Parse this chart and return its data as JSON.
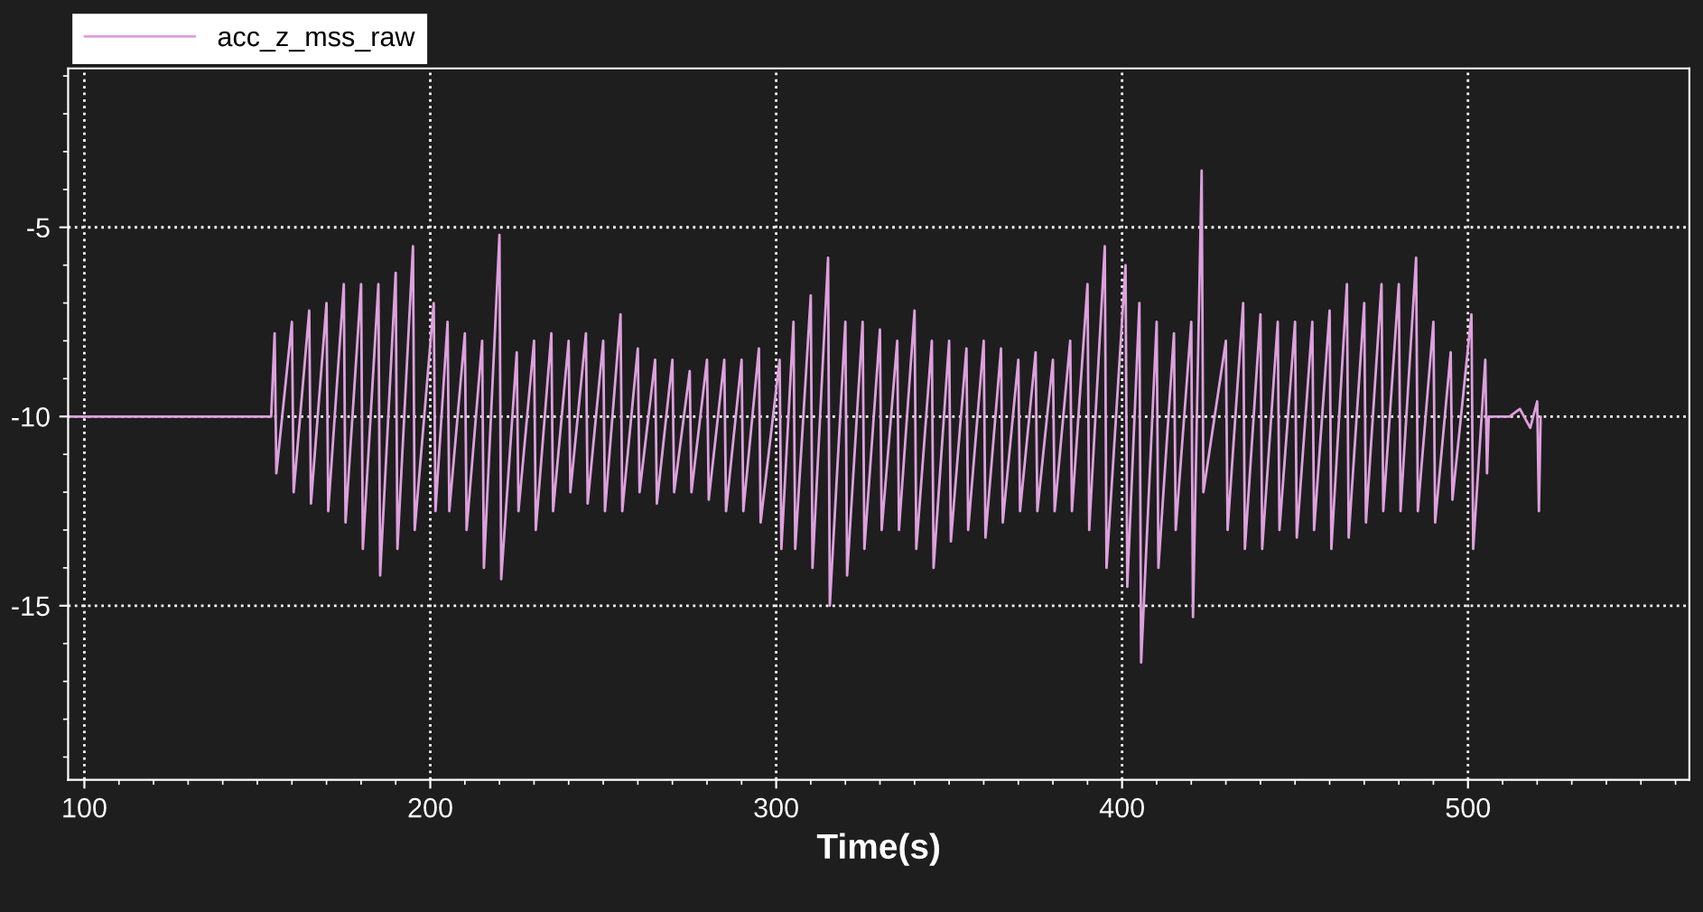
{
  "chart_data": {
    "type": "line",
    "xlabel": "Time(s)",
    "legend": "top left",
    "grid": true,
    "line_style": "solid",
    "marker": "none",
    "xlim": [
      95.3,
      564
    ],
    "xticks": [
      100,
      200,
      300,
      400,
      500
    ],
    "ylim": [
      -19.6,
      -0.8
    ],
    "yticks": [
      -5,
      -10,
      -15
    ],
    "series": [
      {
        "name": "acc_z_mss_raw",
        "color": "#dda0dd",
        "x": [
          96,
          120,
          140,
          154,
          155,
          155.5,
          160,
          160.5,
          165,
          165.5,
          170,
          170.5,
          175,
          175.5,
          180,
          180.5,
          185,
          185.5,
          190,
          190.5,
          195,
          195.5,
          201,
          201.5,
          205,
          205.5,
          210,
          210.5,
          215,
          215.5,
          220,
          220.5,
          225,
          225.5,
          230,
          230.5,
          235,
          235.5,
          240,
          240.5,
          245,
          245.5,
          250,
          250.5,
          255,
          255.5,
          260,
          260.5,
          265,
          265.5,
          270,
          270.5,
          275,
          275.5,
          280,
          280.5,
          285,
          285.5,
          290,
          290.5,
          295,
          295.5,
          301,
          301.5,
          305,
          305.5,
          310,
          310.5,
          315,
          315.5,
          320,
          320.5,
          325,
          325.5,
          330,
          330.5,
          335,
          335.5,
          340,
          340.5,
          345,
          345.5,
          350,
          350.5,
          355,
          355.5,
          360,
          360.5,
          365,
          365.5,
          370,
          370.5,
          375,
          375.5,
          380,
          380.5,
          385,
          385.5,
          390,
          390.5,
          395,
          395.5,
          401,
          401.5,
          405,
          405.5,
          410,
          410.5,
          415,
          415.5,
          420,
          420.5,
          423,
          423.5,
          430,
          430.5,
          435,
          435.5,
          440,
          440.5,
          445,
          445.5,
          450,
          450.5,
          455,
          455.5,
          460,
          460.5,
          465,
          465.5,
          470,
          470.5,
          475,
          475.5,
          480,
          480.5,
          485,
          485.5,
          490,
          490.5,
          495,
          495.5,
          501,
          501.5,
          505,
          505.5,
          506,
          512,
          515,
          518,
          520,
          520.5,
          521
        ],
        "values": [
          -10,
          -10,
          -10,
          -10,
          -7.8,
          -11.5,
          -7.5,
          -12,
          -7.2,
          -12.3,
          -7,
          -12.5,
          -6.5,
          -12.8,
          -6.5,
          -13.5,
          -6.5,
          -14.2,
          -6.2,
          -13.5,
          -5.5,
          -13,
          -7,
          -12.5,
          -7.5,
          -12.5,
          -7.8,
          -13,
          -8,
          -14,
          -5.2,
          -14.3,
          -8.3,
          -12.5,
          -8,
          -13,
          -7.8,
          -12.5,
          -8,
          -12,
          -7.8,
          -12.3,
          -8,
          -12.5,
          -7.3,
          -12.5,
          -8.2,
          -12,
          -8.5,
          -12.3,
          -8.5,
          -12,
          -8.8,
          -12,
          -8.5,
          -12.2,
          -8.5,
          -12.5,
          -8.5,
          -12.5,
          -8.2,
          -12.8,
          -8.5,
          -13.5,
          -7.5,
          -13.5,
          -6.8,
          -14,
          -5.8,
          -15,
          -7.5,
          -14.2,
          -7.5,
          -13.5,
          -7.7,
          -13,
          -8,
          -13,
          -7.2,
          -13.5,
          -8,
          -14,
          -8,
          -13.3,
          -8.2,
          -13,
          -8,
          -13.2,
          -8.2,
          -12.8,
          -8.5,
          -12.5,
          -8.3,
          -12.5,
          -8.5,
          -12.5,
          -8,
          -12.5,
          -6.5,
          -13,
          -5.5,
          -14,
          -6,
          -14.5,
          -7,
          -16.5,
          -7.5,
          -14,
          -7.8,
          -13,
          -7.5,
          -15.3,
          -3.5,
          -12,
          -8,
          -13,
          -7,
          -13.5,
          -7.3,
          -13.5,
          -7.5,
          -13,
          -7.5,
          -13.2,
          -7.5,
          -13,
          -7.2,
          -13.5,
          -6.5,
          -13.2,
          -7,
          -12.8,
          -6.5,
          -12.5,
          -6.5,
          -12.5,
          -5.8,
          -12.5,
          -7.5,
          -12.8,
          -8.3,
          -12.2,
          -7.3,
          -13.5,
          -8.5,
          -11.5,
          -10,
          -10,
          -9.8,
          -10.3,
          -9.6,
          -12.5,
          -10
        ]
      }
    ]
  }
}
